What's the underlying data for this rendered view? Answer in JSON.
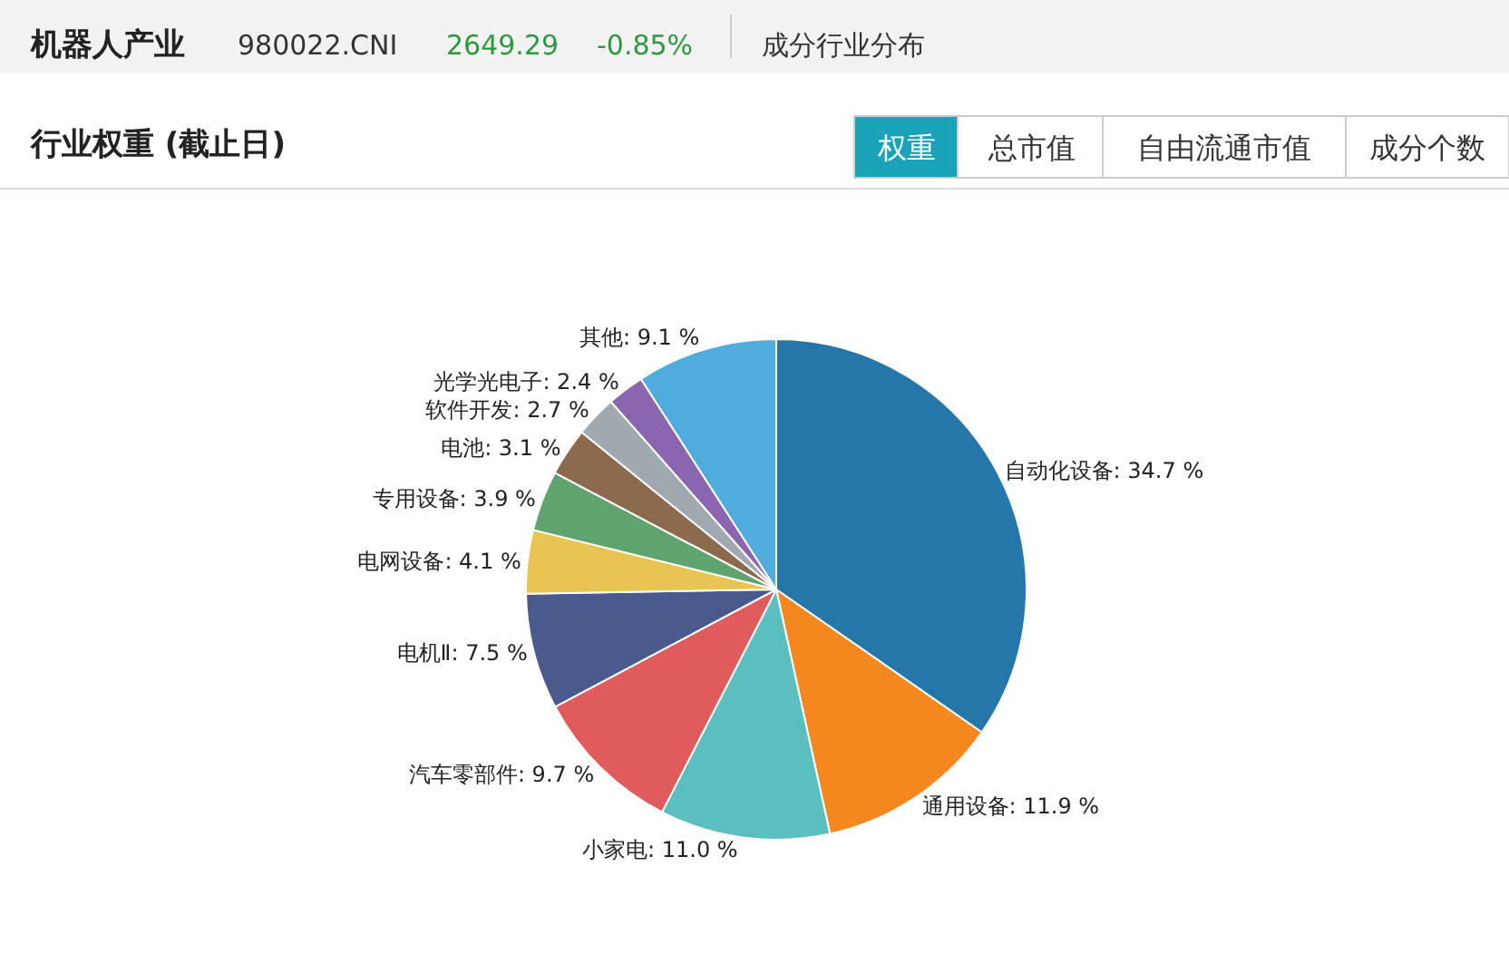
{
  "chart_data": {
    "type": "pie",
    "title": "机器人产业",
    "subtitle": "行业权重 (截止日)",
    "annotations": [
      "980022.CNI",
      "2649.29",
      "-0.85%",
      "成分行业分布",
      "权重",
      "总市值",
      "自由流通市值",
      "成分个数"
    ],
    "categories": [
      "自动化设备",
      "通用设备",
      "小家电",
      "汽车零部件",
      "电机Ⅱ",
      "电网设备",
      "专用设备",
      "电池",
      "软件开发",
      "光学光电子",
      "其他"
    ],
    "values": [
      34.7,
      11.9,
      11.0,
      9.7,
      7.5,
      4.1,
      3.9,
      3.1,
      2.7,
      2.4,
      9.1
    ],
    "value_labels": [
      "34.7 %",
      "11.9 %",
      "11.0 %",
      "9.7 %",
      "7.5 %",
      "4.1 %",
      "3.9 %",
      "3.1 %",
      "2.7 %",
      "2.4 %",
      "9.1 %"
    ],
    "colors": [
      "#2477a8",
      "#f5871f",
      "#5bbfbf",
      "#e05c5c",
      "#4a5a8c",
      "#e8c552",
      "#5fa36e",
      "#8c6a4e",
      "#a0a8b0",
      "#8a66b0",
      "#50acdc"
    ],
    "legend": false
  }
}
